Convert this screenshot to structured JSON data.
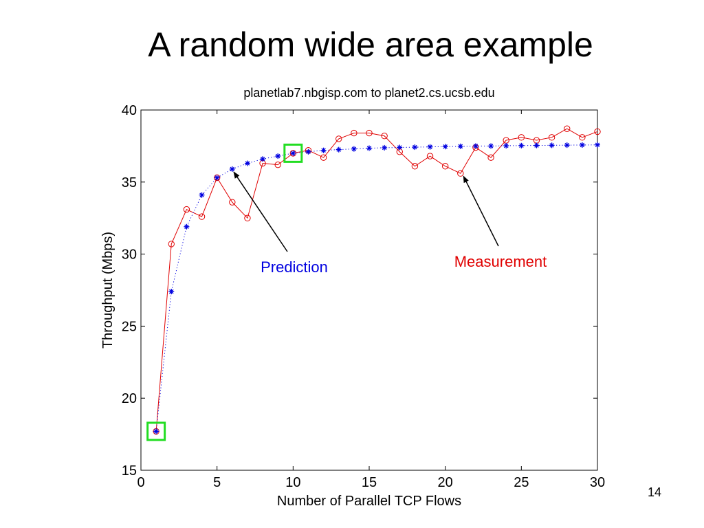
{
  "slide": {
    "title": "A random wide area example",
    "page_number": "14"
  },
  "chart_data": {
    "type": "line",
    "title": "planetlab7.nbgisp.com to planet2.cs.ucsb.edu",
    "xlabel": "Number of Parallel TCP Flows",
    "ylabel": "Throughput (Mbps)",
    "xlim": [
      0,
      30
    ],
    "ylim": [
      15,
      40
    ],
    "xticks": [
      0,
      5,
      10,
      15,
      20,
      25,
      30
    ],
    "yticks": [
      15,
      20,
      25,
      30,
      35,
      40
    ],
    "grid": false,
    "x": [
      1,
      2,
      3,
      4,
      5,
      6,
      7,
      8,
      9,
      10,
      11,
      12,
      13,
      14,
      15,
      16,
      17,
      18,
      19,
      20,
      21,
      22,
      23,
      24,
      25,
      26,
      27,
      28,
      29,
      30
    ],
    "series": [
      {
        "name": "Measurement",
        "color": "#e00000",
        "marker": "circle",
        "line": "solid",
        "values": [
          17.7,
          30.7,
          33.1,
          32.6,
          35.3,
          33.6,
          32.5,
          36.3,
          36.2,
          37.0,
          37.2,
          36.7,
          38.0,
          38.4,
          38.4,
          38.2,
          37.1,
          36.1,
          36.8,
          36.1,
          35.6,
          37.4,
          36.7,
          37.9,
          38.1,
          37.9,
          38.1,
          38.7,
          38.1,
          38.5
        ]
      },
      {
        "name": "Prediction",
        "color": "#0000e0",
        "marker": "star",
        "line": "dotted",
        "values": [
          17.7,
          27.4,
          31.9,
          34.1,
          35.3,
          35.9,
          36.3,
          36.6,
          36.8,
          37.0,
          37.1,
          37.2,
          37.25,
          37.3,
          37.35,
          37.38,
          37.4,
          37.42,
          37.44,
          37.46,
          37.48,
          37.5,
          37.5,
          37.52,
          37.53,
          37.54,
          37.55,
          37.56,
          37.57,
          37.58
        ]
      }
    ],
    "highlights": [
      {
        "x": 1,
        "y": 17.7,
        "color": "#22dd22"
      },
      {
        "x": 10,
        "y": 37.0,
        "color": "#22dd22"
      }
    ],
    "annotations": [
      {
        "text": "Prediction",
        "color": "#0000e0",
        "points_to": {
          "x": 6.1,
          "y": 35.7
        }
      },
      {
        "text": "Measurement",
        "color": "#e00000",
        "points_to": {
          "x": 21.2,
          "y": 35.4
        }
      }
    ]
  }
}
